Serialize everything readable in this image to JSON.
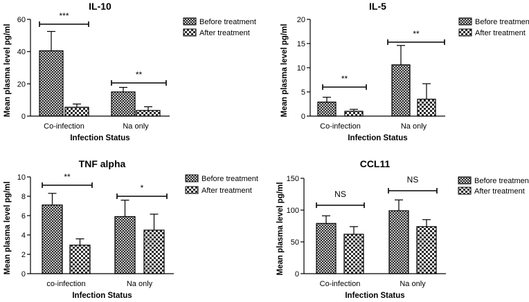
{
  "chart_data": [
    {
      "type": "bar",
      "title": "IL-10",
      "xlabel": "Infection Status",
      "ylabel": "Mean plasma level pg/ml",
      "ylim": [
        0,
        60
      ],
      "yticks": [
        0,
        20,
        40,
        60
      ],
      "categories": [
        "Co-infection",
        "Na only"
      ],
      "series": [
        {
          "name": "Before treatment",
          "values": [
            40.5,
            15.0
          ],
          "errors": [
            12.0,
            2.8
          ]
        },
        {
          "name": "After treatment",
          "values": [
            5.5,
            3.5
          ],
          "errors": [
            2.0,
            2.3
          ]
        }
      ],
      "significance": [
        "***",
        "**"
      ],
      "legend": "top-right",
      "grid": false
    },
    {
      "type": "bar",
      "title": "IL-5",
      "xlabel": "Infection Status",
      "ylabel": "Mean plasma level pg/ml",
      "ylim": [
        0,
        20
      ],
      "yticks": [
        0,
        5,
        10,
        15,
        20
      ],
      "categories": [
        "Co-infection",
        "Na only"
      ],
      "series": [
        {
          "name": "Before treatment",
          "values": [
            2.9,
            10.6
          ],
          "errors": [
            1.0,
            4.0
          ]
        },
        {
          "name": "After treatment",
          "values": [
            1.0,
            3.5
          ],
          "errors": [
            0.4,
            3.2
          ]
        }
      ],
      "significance": [
        "**",
        "**"
      ],
      "legend": "top-right",
      "grid": false
    },
    {
      "type": "bar",
      "title": "TNF alpha",
      "xlabel": "Infection Status",
      "ylabel": "Mean plasma level pg/ml",
      "ylim": [
        0,
        10
      ],
      "yticks": [
        0,
        2,
        4,
        6,
        8,
        10
      ],
      "categories": [
        "co-infection",
        "Na only"
      ],
      "series": [
        {
          "name": "Before treatment",
          "values": [
            7.1,
            5.9
          ],
          "errors": [
            1.2,
            1.7
          ]
        },
        {
          "name": "After treatment",
          "values": [
            2.95,
            4.5
          ],
          "errors": [
            0.65,
            1.65
          ]
        }
      ],
      "significance": [
        "**",
        "*"
      ],
      "legend": "top-right",
      "grid": false
    },
    {
      "type": "bar",
      "title": "CCL11",
      "xlabel": "Infection Status",
      "ylabel": "Mean plasma level pg/ml",
      "ylim": [
        0,
        150
      ],
      "yticks": [
        0,
        50,
        100,
        150
      ],
      "categories": [
        "Co-infection",
        "Na only"
      ],
      "series": [
        {
          "name": "Before treatment",
          "values": [
            79,
            99
          ],
          "errors": [
            12,
            17
          ]
        },
        {
          "name": "After treatment",
          "values": [
            62,
            74
          ],
          "errors": [
            12,
            11
          ]
        }
      ],
      "significance": [
        "NS",
        "NS"
      ],
      "legend": "top-right",
      "grid": false
    }
  ]
}
